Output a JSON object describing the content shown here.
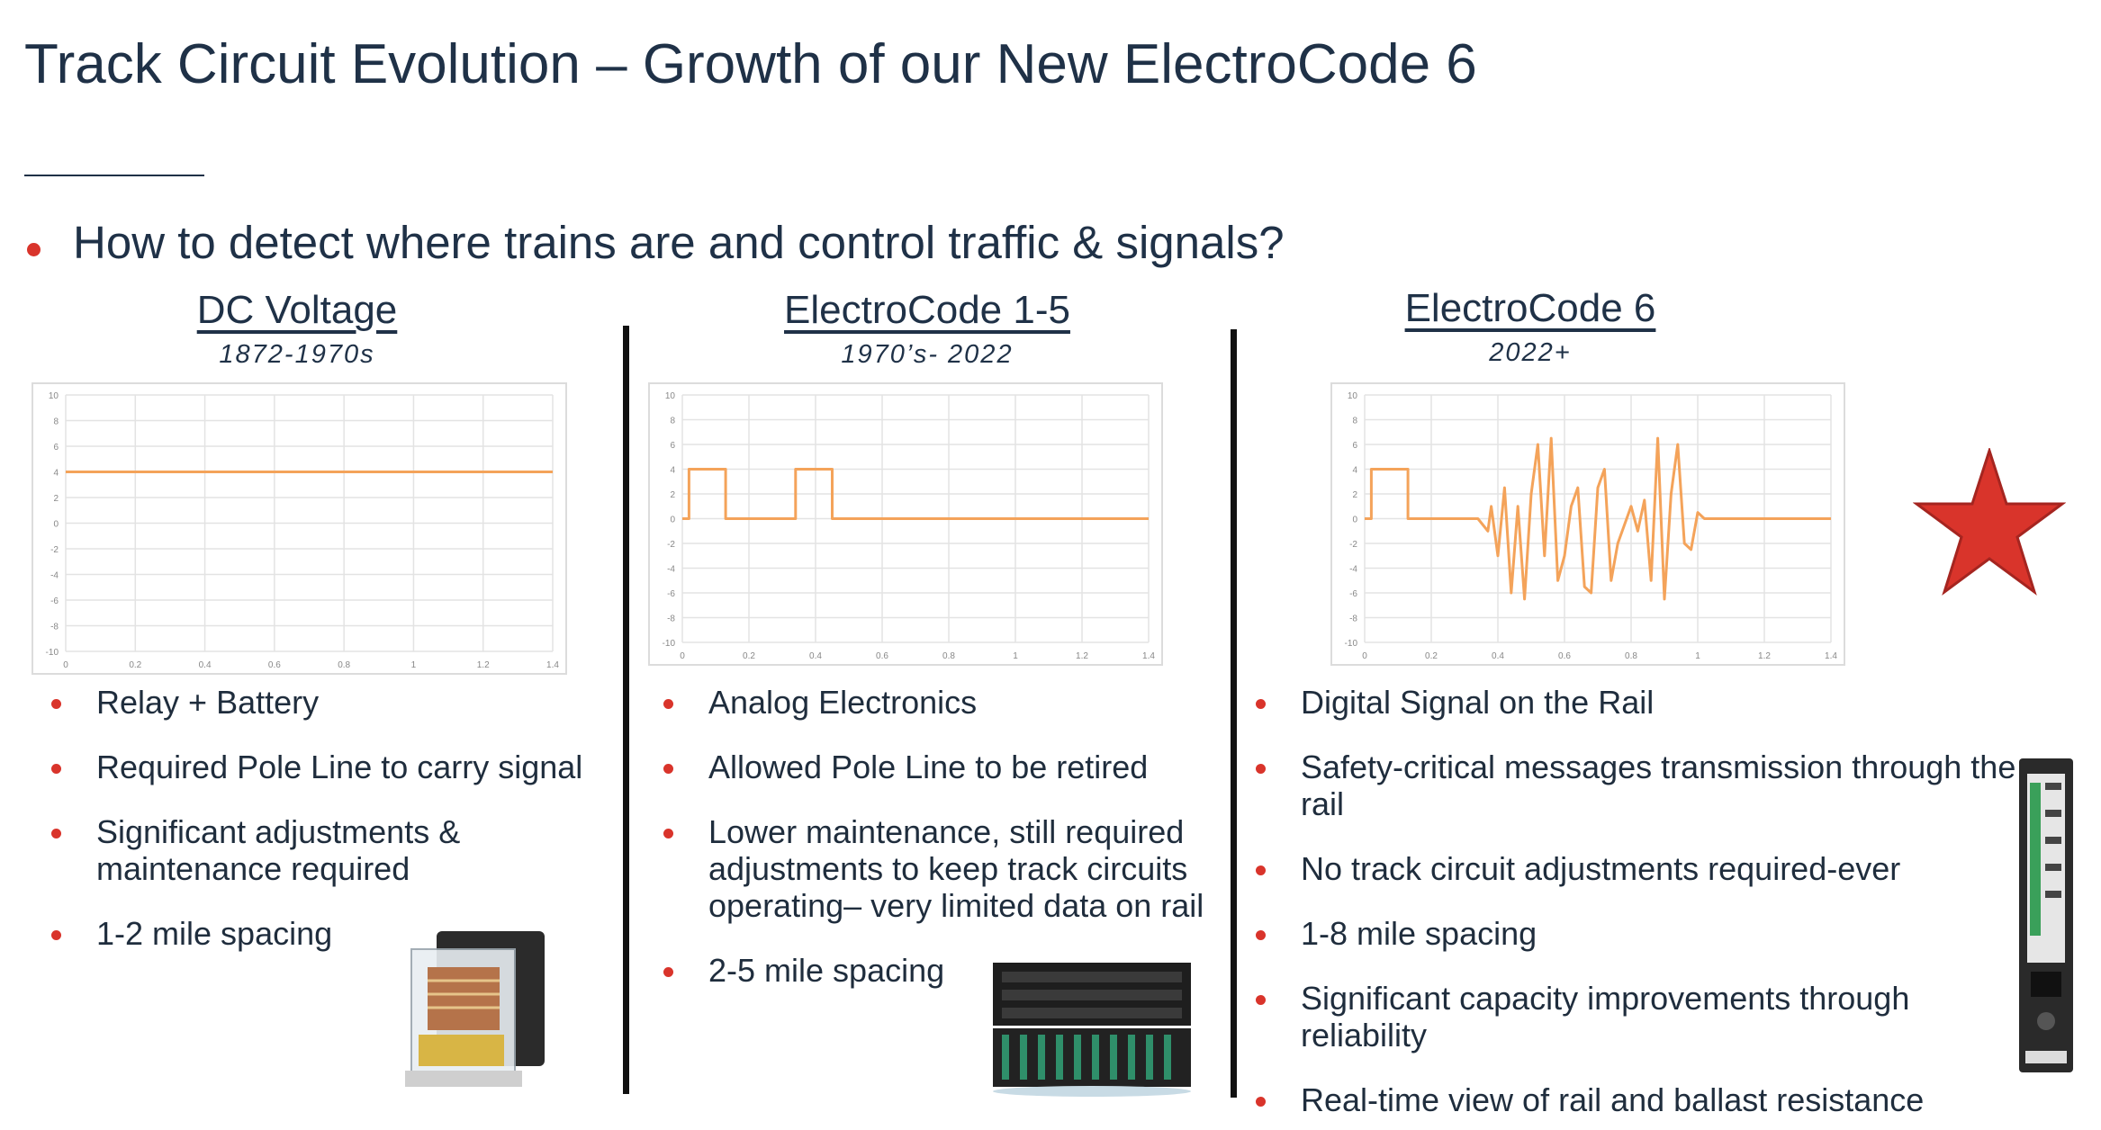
{
  "title": "Track Circuit Evolution  – Growth of our New ElectroCode 6",
  "question": "How to detect where trains are and control traffic & signals?",
  "accent_color": "#d9342b",
  "line_color": "#f4a35a",
  "columns": [
    {
      "heading": "DC Voltage",
      "years": "1872-1970s",
      "bullets": [
        "Relay + Battery",
        "Required Pole Line to carry signal",
        "Significant adjustments & maintenance required",
        "1-2 mile spacing"
      ],
      "image": "relay-device"
    },
    {
      "heading": "ElectroCode 1-5",
      "years": "1970’s- 2022",
      "bullets": [
        "Analog Electronics",
        "Allowed Pole Line to be retired",
        "Lower maintenance, still required adjustments to keep track circuits operating– very limited data on rail",
        "2-5 mile spacing"
      ],
      "image": "electronic-rack"
    },
    {
      "heading": "ElectroCode 6",
      "years": "2022+",
      "bullets": [
        "Digital Signal on the Rail",
        "Safety-critical messages transmission through the rail",
        "No track circuit adjustments required-ever",
        "1-8 mile spacing",
        "Significant capacity improvements through reliability",
        "Real-time view of rail and ballast resistance"
      ],
      "image": "electrocode-module",
      "badge": "star-icon"
    }
  ],
  "chart_data": [
    {
      "type": "line",
      "x_ticks": [
        "0",
        "0.2",
        "0.4",
        "0.6",
        "0.8",
        "1",
        "1.2",
        "1.4"
      ],
      "y_ticks": [
        "10",
        "8",
        "6",
        "4",
        "2",
        "0",
        "-2",
        "-4",
        "-6",
        "-8",
        "-10"
      ],
      "xlim": [
        0,
        1.4
      ],
      "ylim": [
        -10,
        10
      ],
      "grid": true,
      "series": [
        {
          "x": [
            0,
            1.4
          ],
          "y": [
            4,
            4
          ]
        }
      ]
    },
    {
      "type": "line",
      "x_ticks": [
        "0",
        "0.2",
        "0.4",
        "0.6",
        "0.8",
        "1",
        "1.2",
        "1.4"
      ],
      "y_ticks": [
        "10",
        "8",
        "6",
        "4",
        "2",
        "0",
        "-2",
        "-4",
        "-6",
        "-8",
        "-10"
      ],
      "xlim": [
        0,
        1.4
      ],
      "ylim": [
        -10,
        10
      ],
      "grid": true,
      "series": [
        {
          "x": [
            0,
            0.02,
            0.02,
            0.13,
            0.13,
            0.34,
            0.34,
            0.45,
            0.45,
            1.4
          ],
          "y": [
            0,
            0,
            4,
            4,
            0,
            0,
            4,
            4,
            0,
            0
          ]
        }
      ]
    },
    {
      "type": "line",
      "x_ticks": [
        "0",
        "0.2",
        "0.4",
        "0.6",
        "0.8",
        "1",
        "1.2",
        "1.4"
      ],
      "y_ticks": [
        "10",
        "8",
        "6",
        "4",
        "2",
        "0",
        "-2",
        "-4",
        "-6",
        "-8",
        "-10"
      ],
      "xlim": [
        0,
        1.4
      ],
      "ylim": [
        -10,
        10
      ],
      "grid": true,
      "series": [
        {
          "x": [
            0,
            0.02,
            0.02,
            0.13,
            0.13,
            0.34,
            0.37,
            0.38,
            0.4,
            0.42,
            0.44,
            0.46,
            0.48,
            0.5,
            0.52,
            0.54,
            0.56,
            0.58,
            0.6,
            0.62,
            0.64,
            0.66,
            0.68,
            0.7,
            0.72,
            0.74,
            0.76,
            0.78,
            0.8,
            0.82,
            0.84,
            0.86,
            0.88,
            0.9,
            0.92,
            0.94,
            0.96,
            0.98,
            1.0,
            1.02,
            1.04,
            1.06,
            1.08,
            1.1,
            1.12,
            1.16,
            1.4
          ],
          "y": [
            0,
            0,
            4,
            4,
            0,
            0,
            -1,
            1,
            -3,
            2.5,
            -6,
            1,
            -6.5,
            2,
            6,
            -3,
            6.5,
            -5,
            -3,
            1,
            2.5,
            -5.5,
            -6,
            2.5,
            4,
            -5,
            -2,
            -0.5,
            1,
            -1,
            1.5,
            -5,
            6.5,
            -6.5,
            2,
            6,
            -2,
            -2.5,
            0.5,
            0,
            0,
            0,
            0,
            0,
            0,
            0,
            0
          ]
        }
      ]
    }
  ]
}
